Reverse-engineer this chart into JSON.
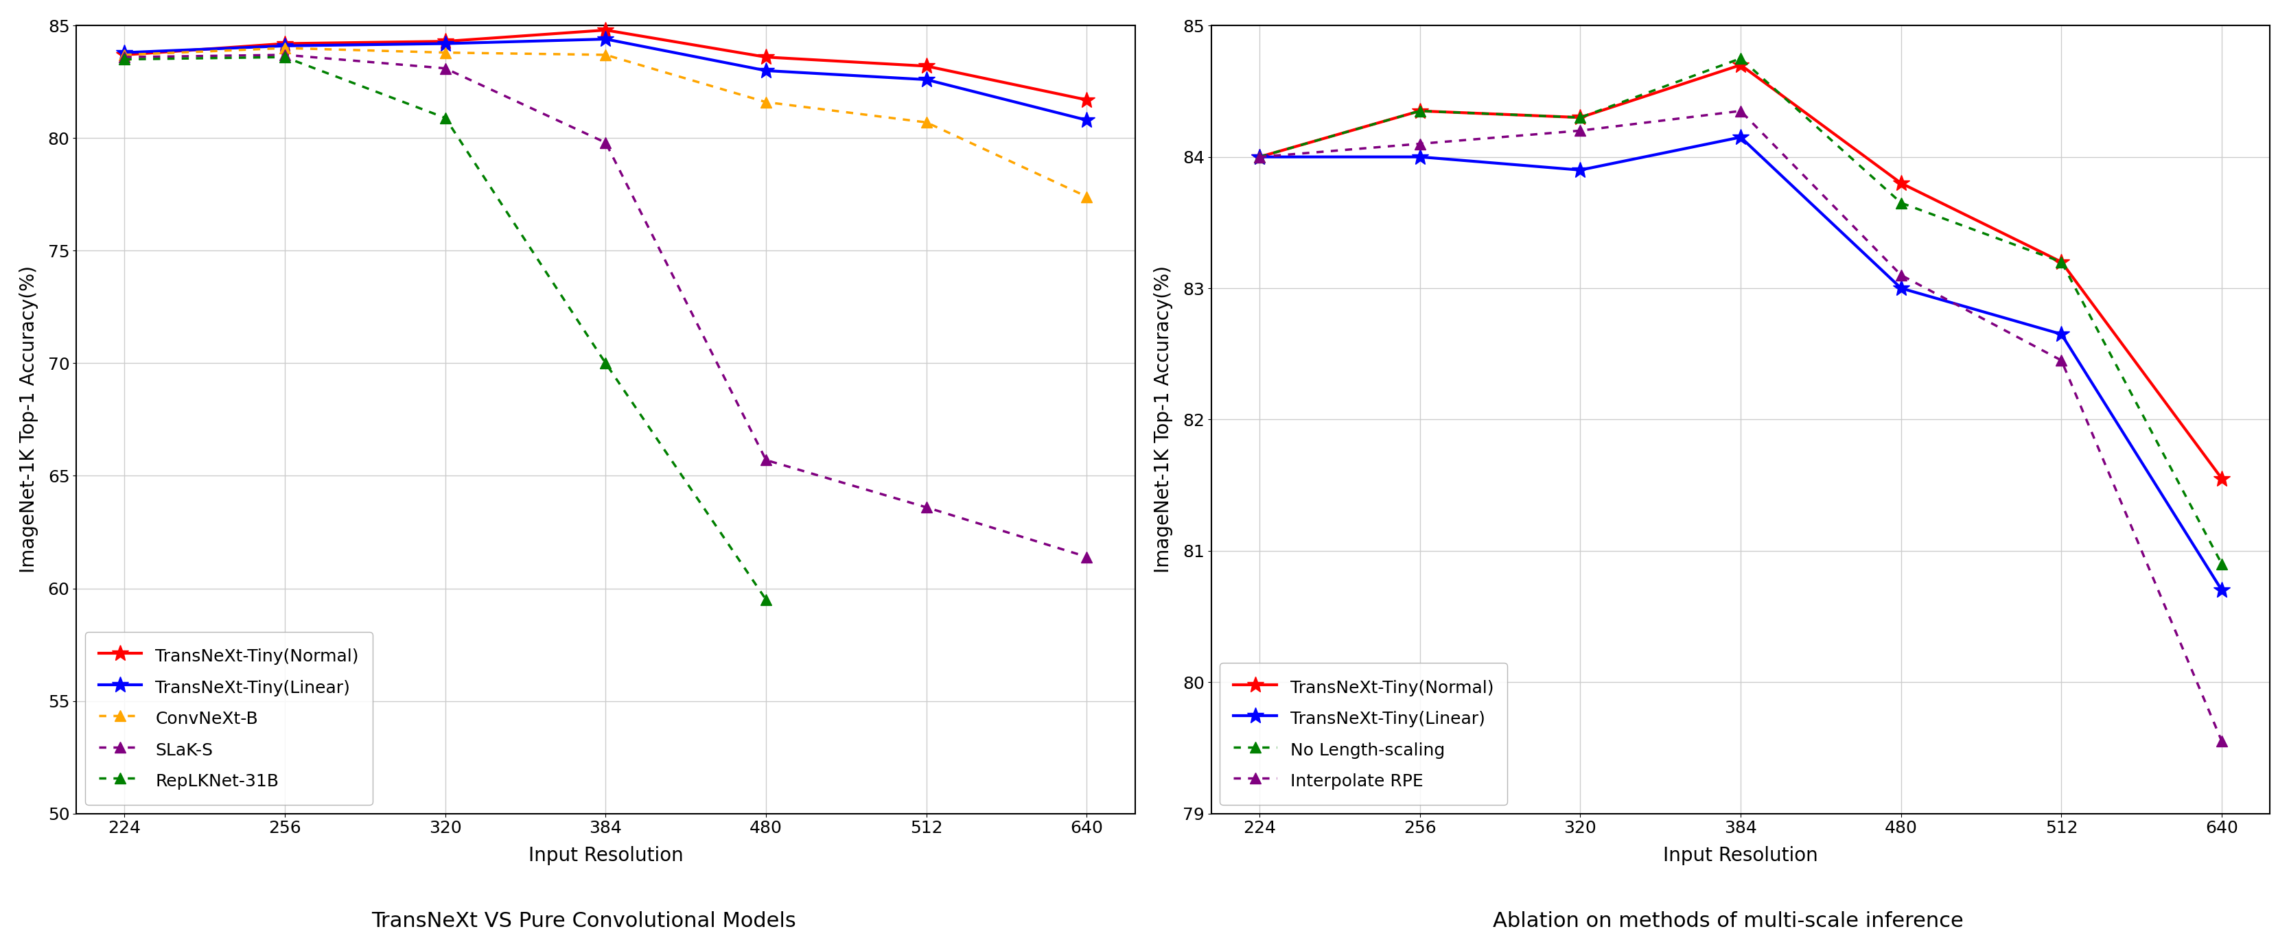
{
  "left_plot": {
    "title": "TransNeXt VS Pure Convolutional Models",
    "xlabel": "Input Resolution",
    "ylabel": "ImageNet-1K Top-1 Accuracy(%)",
    "xlim_labels": [
      224,
      256,
      320,
      384,
      480,
      512,
      640
    ],
    "ylim": [
      50,
      85
    ],
    "yticks": [
      50,
      55,
      60,
      65,
      70,
      75,
      80,
      85
    ],
    "series": [
      {
        "label": "TransNeXt-Tiny(Normal)",
        "color": "#FF0000",
        "linestyle": "solid",
        "marker": "*",
        "linewidth": 3.0,
        "markersize": 18,
        "x": [
          224,
          256,
          320,
          384,
          480,
          512,
          640
        ],
        "y": [
          83.7,
          84.2,
          84.3,
          84.8,
          83.6,
          83.2,
          81.7
        ]
      },
      {
        "label": "TransNeXt-Tiny(Linear)",
        "color": "#0000FF",
        "linestyle": "solid",
        "marker": "*",
        "linewidth": 3.0,
        "markersize": 18,
        "x": [
          224,
          256,
          320,
          384,
          480,
          512,
          640
        ],
        "y": [
          83.8,
          84.1,
          84.2,
          84.4,
          83.0,
          82.6,
          80.8
        ]
      },
      {
        "label": "ConvNeXt-B",
        "color": "#FFA500",
        "linestyle": "dotted",
        "marker": "^",
        "linewidth": 2.5,
        "markersize": 12,
        "x": [
          224,
          256,
          320,
          384,
          480,
          512,
          640
        ],
        "y": [
          83.7,
          84.0,
          83.8,
          83.7,
          81.6,
          80.7,
          77.4
        ]
      },
      {
        "label": "SLaK-S",
        "color": "#800080",
        "linestyle": "dotted",
        "marker": "^",
        "linewidth": 2.5,
        "markersize": 12,
        "x": [
          224,
          256,
          320,
          384,
          480,
          512,
          640
        ],
        "y": [
          83.6,
          83.7,
          83.1,
          79.8,
          65.7,
          63.6,
          61.4
        ]
      },
      {
        "label": "RepLKNet-31B",
        "color": "#008000",
        "linestyle": "dotted",
        "marker": "^",
        "linewidth": 2.5,
        "markersize": 12,
        "x": [
          224,
          256,
          320,
          384,
          480
        ],
        "y": [
          83.5,
          83.6,
          80.9,
          70.0,
          59.5
        ]
      }
    ]
  },
  "right_plot": {
    "title": "Ablation on methods of multi-scale inference",
    "xlabel": "Input Resolution",
    "ylabel": "ImageNet-1K Top-1 Accuracy(%)",
    "xlim_labels": [
      224,
      256,
      320,
      384,
      480,
      512,
      640
    ],
    "ylim": [
      79,
      85
    ],
    "yticks": [
      79,
      80,
      81,
      82,
      83,
      84,
      85
    ],
    "series": [
      {
        "label": "TransNeXt-Tiny(Normal)",
        "color": "#FF0000",
        "linestyle": "solid",
        "marker": "*",
        "linewidth": 3.0,
        "markersize": 18,
        "x": [
          224,
          256,
          320,
          384,
          480,
          512,
          640
        ],
        "y": [
          84.0,
          84.35,
          84.3,
          84.7,
          83.8,
          83.2,
          81.55
        ]
      },
      {
        "label": "TransNeXt-Tiny(Linear)",
        "color": "#0000FF",
        "linestyle": "solid",
        "marker": "*",
        "linewidth": 3.0,
        "markersize": 18,
        "x": [
          224,
          256,
          320,
          384,
          480,
          512,
          640
        ],
        "y": [
          84.0,
          84.0,
          83.9,
          84.15,
          83.0,
          82.65,
          80.7
        ]
      },
      {
        "label": "No Length-scaling",
        "color": "#008000",
        "linestyle": "dotted",
        "marker": "^",
        "linewidth": 2.5,
        "markersize": 12,
        "x": [
          224,
          256,
          320,
          384,
          480,
          512,
          640
        ],
        "y": [
          84.0,
          84.35,
          84.3,
          84.75,
          83.65,
          83.2,
          80.9
        ]
      },
      {
        "label": "Interpolate RPE",
        "color": "#800080",
        "linestyle": "dotted",
        "marker": "^",
        "linewidth": 2.5,
        "markersize": 12,
        "x": [
          224,
          256,
          320,
          384,
          480,
          512,
          640
        ],
        "y": [
          84.0,
          84.1,
          84.2,
          84.35,
          83.1,
          82.45,
          79.55
        ]
      }
    ]
  },
  "background_color": "#FFFFFF",
  "grid_color": "#CCCCCC",
  "legend_fontsize": 18,
  "axis_label_fontsize": 20,
  "tick_fontsize": 18,
  "title_fontsize": 22
}
